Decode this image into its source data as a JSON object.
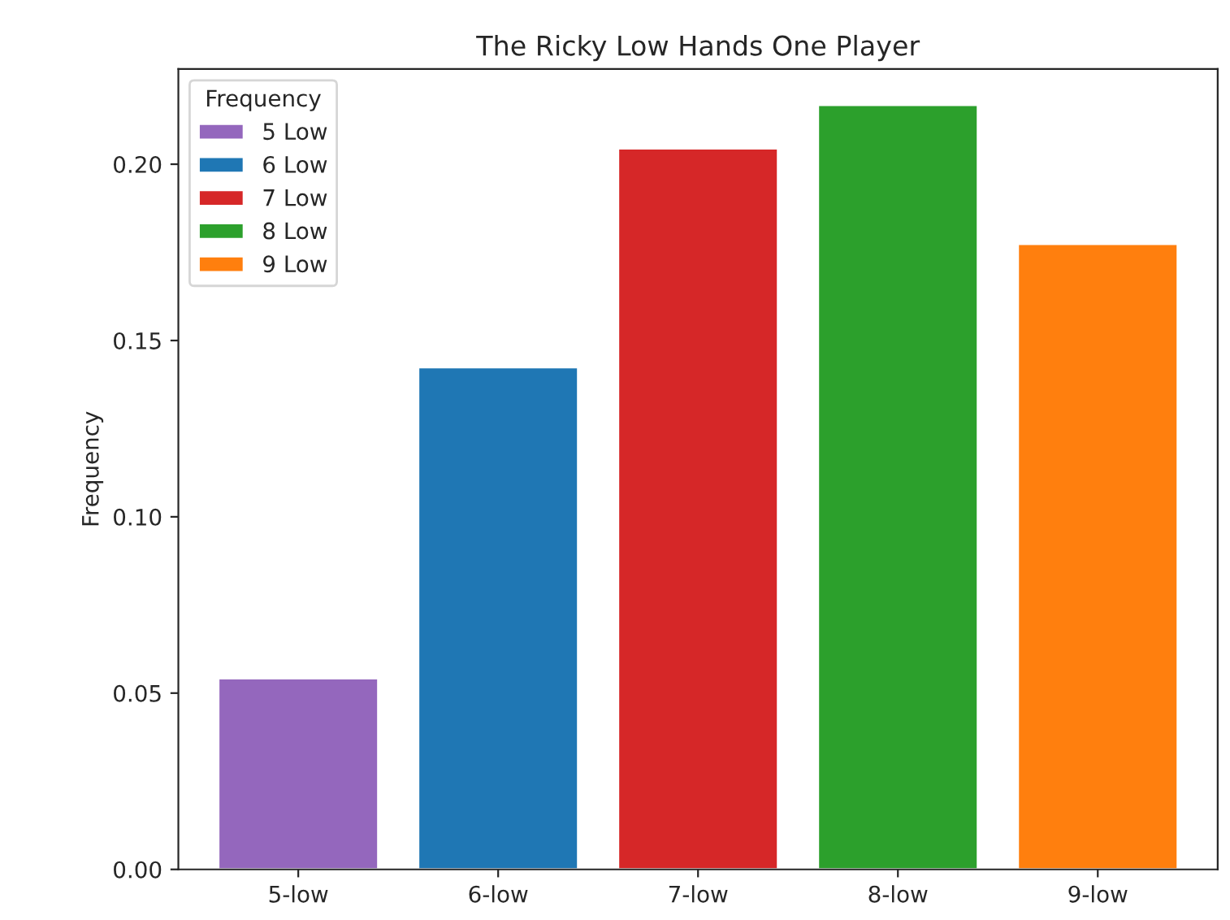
{
  "chart_data": {
    "type": "bar",
    "title": "The Ricky Low Hands One Player",
    "ylabel": "Frequency",
    "legend_title": "Frequency",
    "categories": [
      "5-low",
      "6-low",
      "7-low",
      "8-low",
      "9-low"
    ],
    "series": [
      {
        "name": "5 Low",
        "color": "#9467bd",
        "values": [
          0.0542,
          null,
          null,
          null,
          null
        ]
      },
      {
        "name": "6 Low",
        "color": "#1f77b4",
        "values": [
          null,
          0.1424,
          null,
          null,
          null
        ]
      },
      {
        "name": "7 Low",
        "color": "#d62728",
        "values": [
          null,
          null,
          0.2045,
          null,
          null
        ]
      },
      {
        "name": "8 Low",
        "color": "#2ca02c",
        "values": [
          null,
          null,
          null,
          0.2168,
          null
        ]
      },
      {
        "name": "9 Low",
        "color": "#ff7f0e",
        "values": [
          null,
          null,
          null,
          null,
          0.1774
        ]
      }
    ],
    "ylim": [
      0,
      0.227
    ],
    "yticks": [
      {
        "value": 0,
        "label": "0.00"
      },
      {
        "value": 0.05,
        "label": "0.05"
      },
      {
        "value": 0.1,
        "label": "0.10"
      },
      {
        "value": 0.15,
        "label": "0.15"
      },
      {
        "value": 0.2,
        "label": "0.20"
      }
    ],
    "legend": "top left",
    "grid": false
  }
}
